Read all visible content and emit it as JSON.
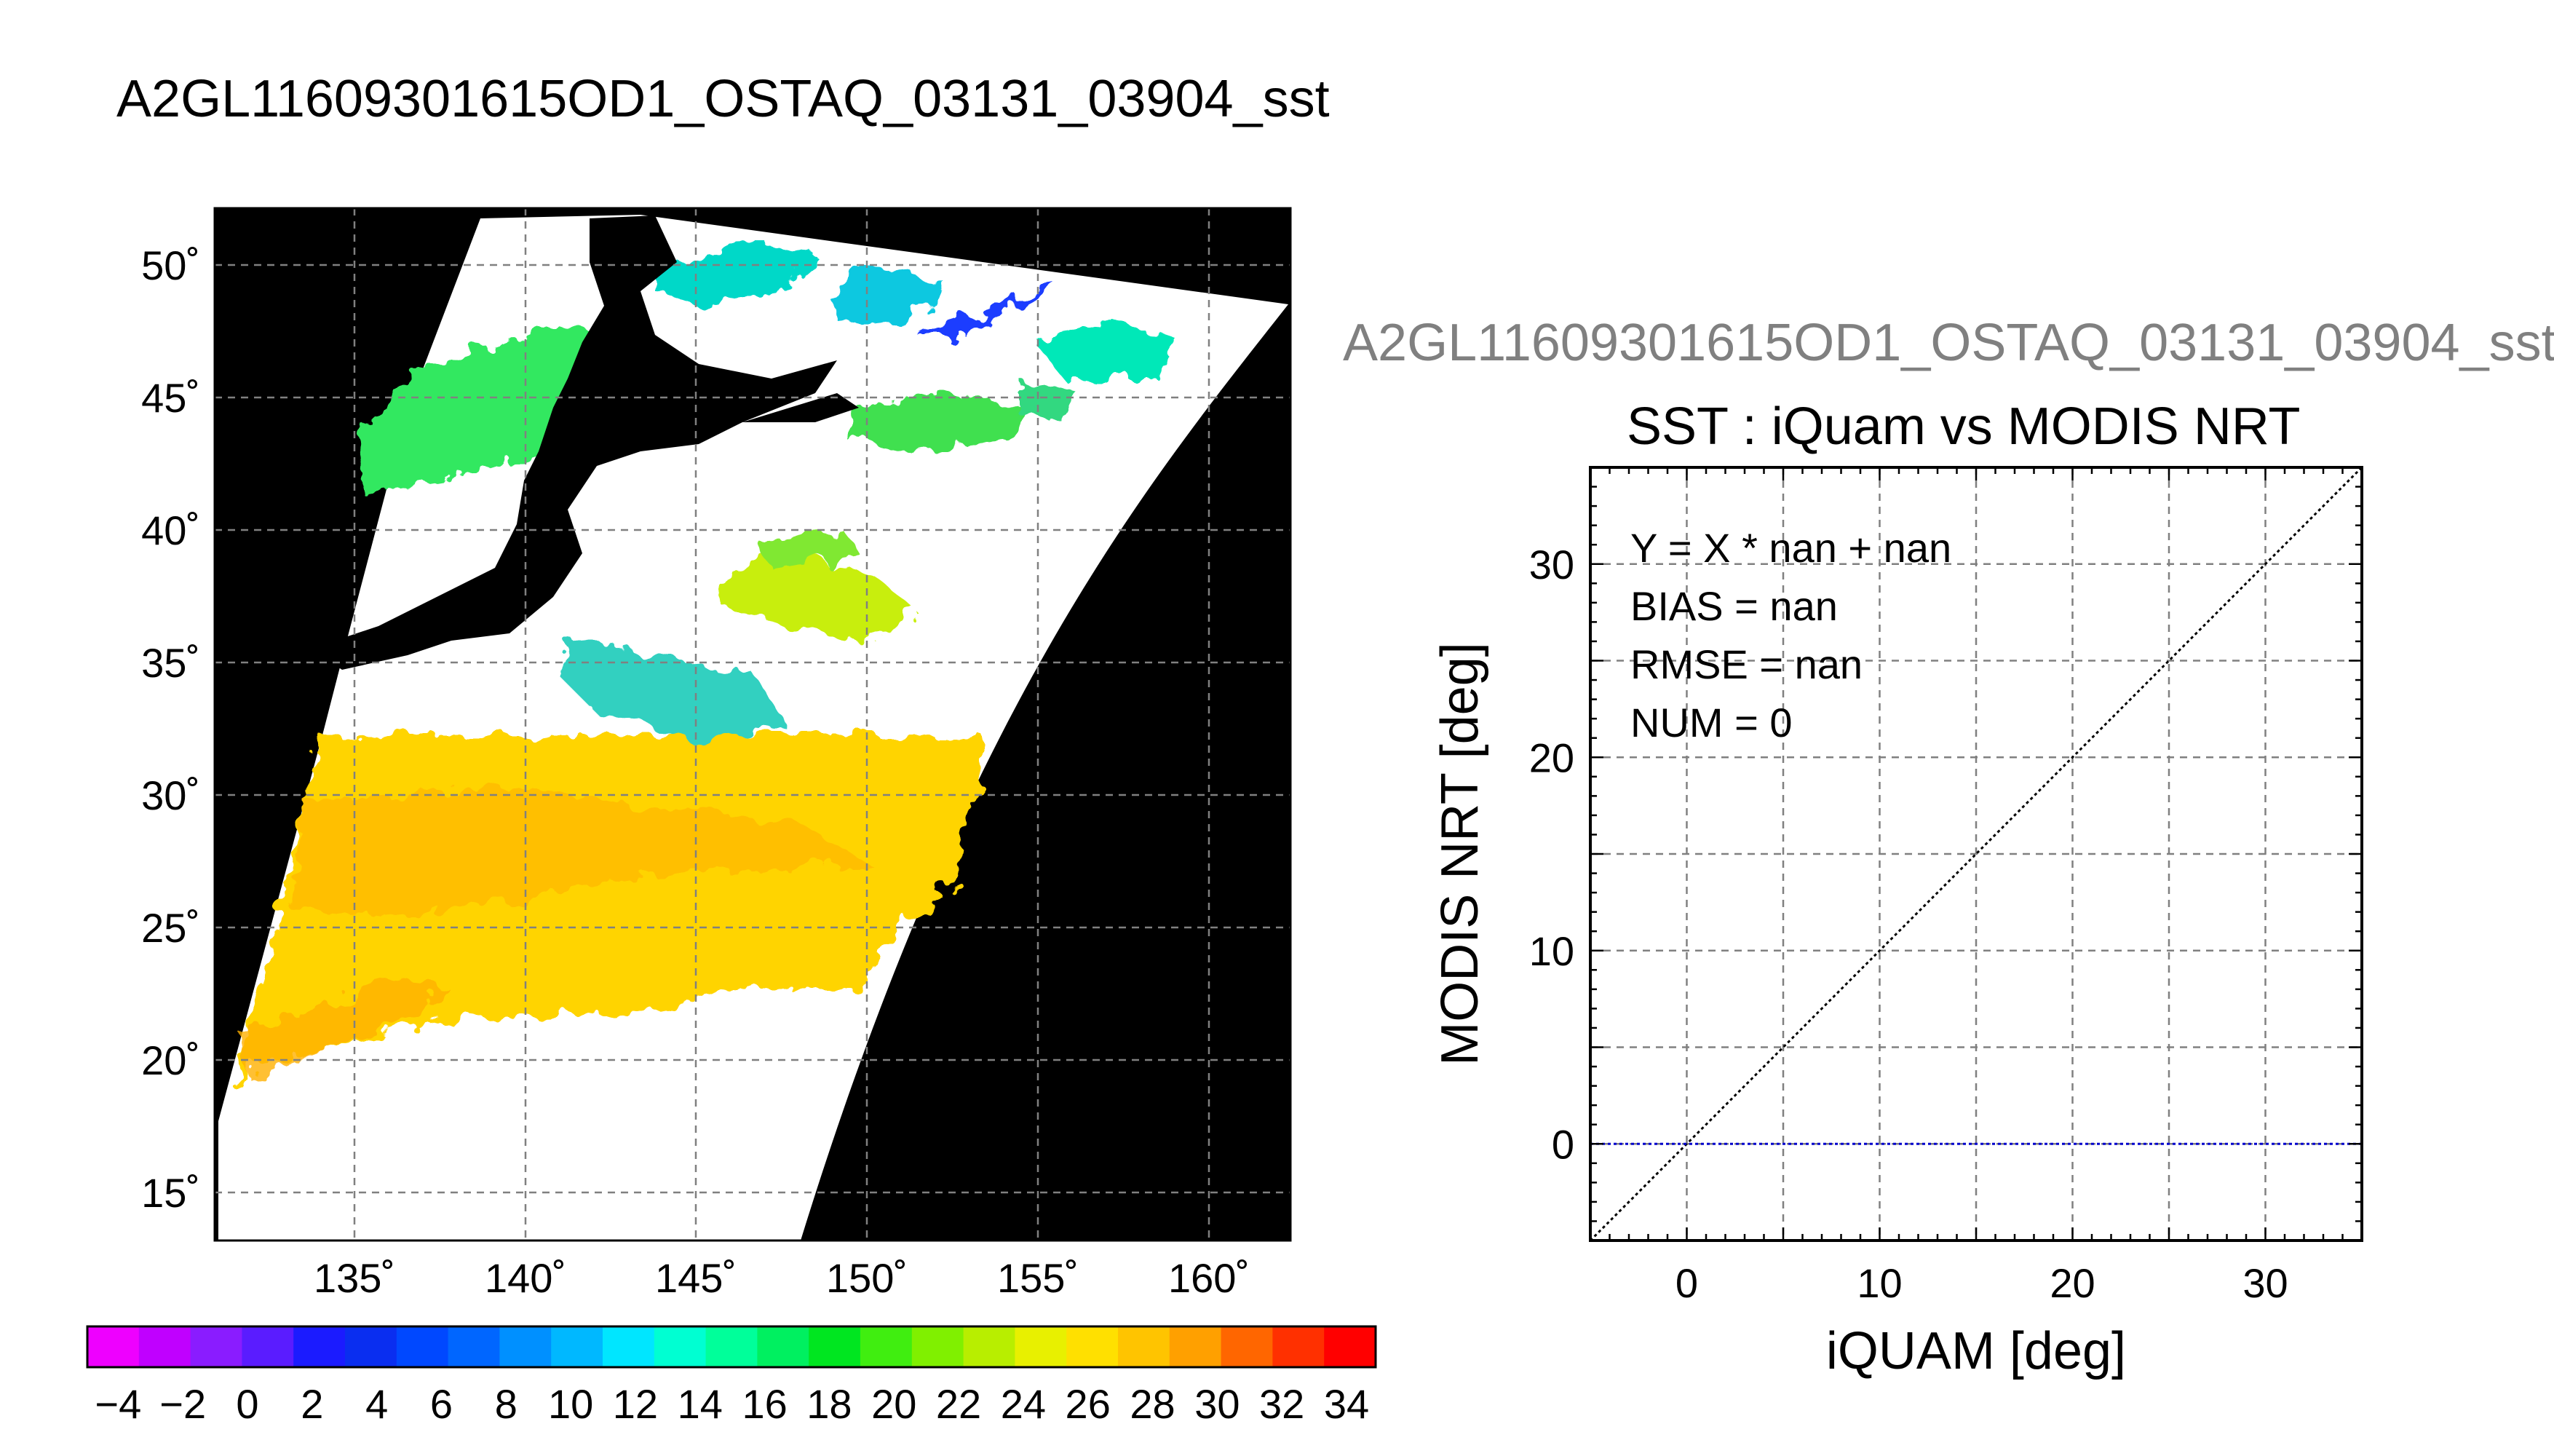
{
  "page": {
    "main_title": "A2GL11609301615OD1_OSTAQ_03131_03904_sst",
    "right_title": "A2GL11609301615OD1_OSTAQ_03131_03904_sst"
  },
  "map": {
    "lat_ticks": [
      "50˚",
      "45˚",
      "40˚",
      "35˚",
      "30˚",
      "25˚",
      "20˚",
      "15˚"
    ],
    "lon_ticks": [
      "135˚",
      "140˚",
      "145˚",
      "150˚",
      "155˚",
      "160˚"
    ],
    "grid": true,
    "colors": {
      "land_and_no_swath": "#000000",
      "cloud_masked": "#ffffff"
    }
  },
  "colorbar": {
    "tick_labels": [
      "−4",
      "−2",
      "0",
      "2",
      "4",
      "6",
      "8",
      "10",
      "12",
      "14",
      "16",
      "18",
      "20",
      "22",
      "24",
      "26",
      "28",
      "30",
      "32",
      "34"
    ],
    "colors": [
      "#ee00ff",
      "#c000ff",
      "#8a1cff",
      "#5a1cff",
      "#1b1bff",
      "#0a2ef0",
      "#0048ff",
      "#0066ff",
      "#0090ff",
      "#00b8ff",
      "#00e6ff",
      "#00ffd2",
      "#00ff9a",
      "#00f060",
      "#00e620",
      "#40ee10",
      "#80f000",
      "#b8ee00",
      "#e8f000",
      "#ffe000",
      "#ffc400",
      "#ffa000",
      "#ff6600",
      "#ff3000",
      "#ff0000"
    ]
  },
  "chart_data": [
    {
      "type": "heatmap",
      "title": "A2GL11609301615OD1_OSTAQ_03131_03904_sst",
      "x": {
        "ticks": [
          135,
          140,
          145,
          150,
          155,
          160
        ],
        "tick_labels": [
          "135˚",
          "140˚",
          "145˚",
          "150˚",
          "155˚",
          "160˚"
        ]
      },
      "y": {
        "ticks": [
          50,
          45,
          40,
          35,
          30,
          25,
          20,
          15
        ],
        "tick_labels": [
          "50˚",
          "45˚",
          "40˚",
          "35˚",
          "30˚",
          "25˚",
          "20˚",
          "15˚"
        ]
      },
      "grid": true,
      "colorbar": {
        "range": [
          -4,
          34
        ]
      }
    },
    {
      "type": "scatter",
      "title": "SST : iQuam vs MODIS NRT",
      "xlabel": "iQUAM [deg]",
      "ylabel": "MODIS NRT [deg]",
      "xlim": [
        -5,
        35
      ],
      "ylim": [
        -5,
        35
      ],
      "xticks": [
        0,
        10,
        20,
        30
      ],
      "yticks": [
        0,
        10,
        20,
        30
      ],
      "grid": true,
      "annotations": [
        "Y = X * nan + nan",
        "BIAS = nan",
        "RMSE = nan",
        "NUM = 0"
      ],
      "series": [
        {
          "type": "line",
          "x": [
            -5,
            35
          ],
          "y": [
            -5,
            35
          ],
          "color": "#000000",
          "style": "dotted"
        },
        {
          "type": "line",
          "x": [
            -5,
            35
          ],
          "y": [
            0,
            0
          ],
          "color": "#0000cc",
          "style": "dotted"
        }
      ],
      "points": []
    }
  ]
}
